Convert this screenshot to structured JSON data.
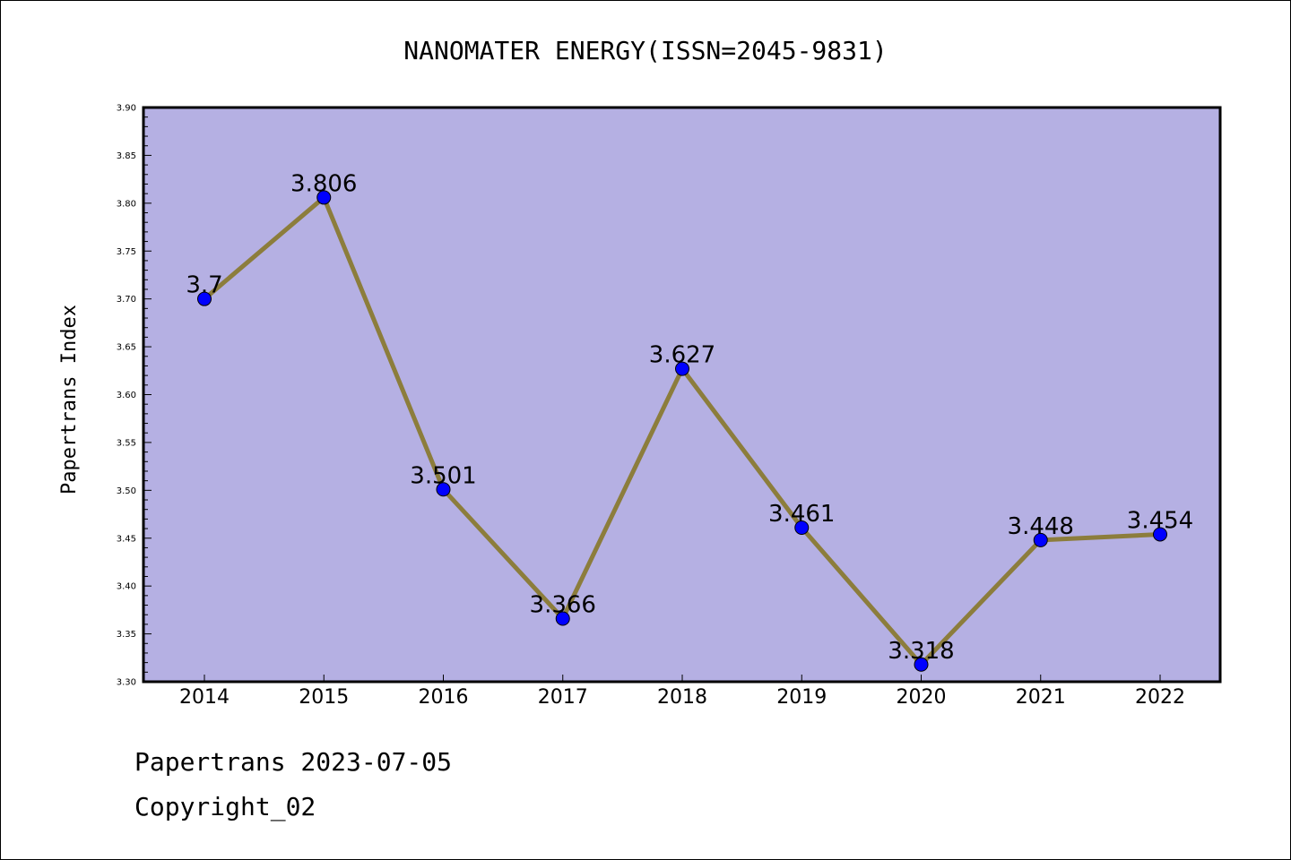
{
  "chart_data": {
    "type": "line",
    "title": "NANOMATER ENERGY(ISSN=2045-9831)",
    "xlabel": "",
    "ylabel": "Papertrans Index",
    "categories": [
      "2014",
      "2015",
      "2016",
      "2017",
      "2018",
      "2019",
      "2020",
      "2021",
      "2022"
    ],
    "values": [
      3.7,
      3.806,
      3.501,
      3.366,
      3.627,
      3.461,
      3.318,
      3.448,
      3.454
    ],
    "data_labels": [
      "3.7",
      "3.806",
      "3.501",
      "3.366",
      "3.627",
      "3.461",
      "3.318",
      "3.448",
      "3.454"
    ],
    "ylim": [
      3.3,
      3.9
    ],
    "yticks": [
      "3.30",
      "3.35",
      "3.40",
      "3.45",
      "3.50",
      "3.55",
      "3.60",
      "3.65",
      "3.70",
      "3.75",
      "3.80",
      "3.85",
      "3.90"
    ],
    "grid": false,
    "colors": {
      "plot_background": "#b5b0e3",
      "line": "#8c7d3c",
      "marker": "#0000ff"
    }
  },
  "footer": {
    "line1": "Papertrans 2023-07-05",
    "line2": "Copyright_02"
  }
}
